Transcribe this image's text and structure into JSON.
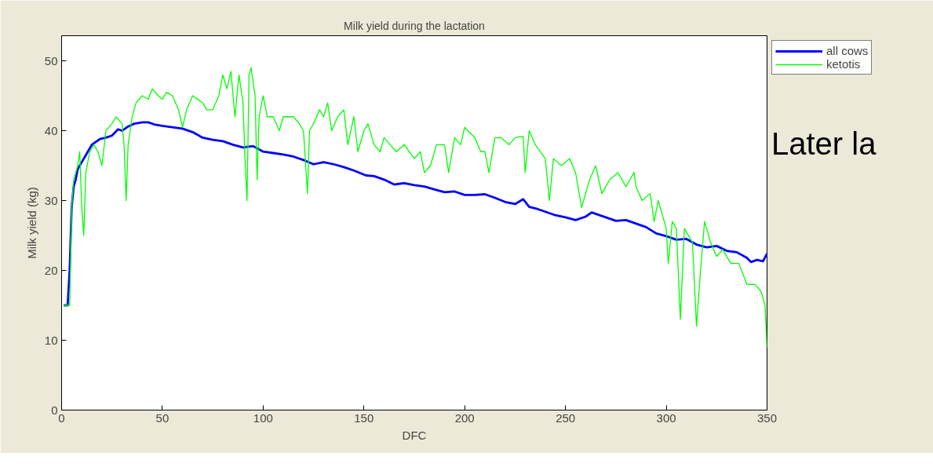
{
  "chart_data": {
    "type": "line",
    "title": "Milk yield during the lactation",
    "xlabel": "DFC",
    "ylabel": "Milk yield (kg)",
    "xlim": [
      0,
      350
    ],
    "ylim": [
      0,
      53.6
    ],
    "xticks": [
      0,
      50,
      100,
      150,
      200,
      250,
      300,
      350
    ],
    "yticks": [
      0,
      10,
      20,
      30,
      40,
      50
    ],
    "grid": false,
    "legend": "top right",
    "line_style": "solid",
    "marker": "none",
    "annotations": [
      "Later la"
    ],
    "series": [
      {
        "name": "all cows",
        "color": "#0000ff",
        "x": [
          1,
          3,
          4,
          5,
          6,
          7,
          8,
          10,
          12,
          15,
          19,
          22,
          25,
          28,
          30,
          33,
          36,
          40,
          43,
          46,
          50,
          55,
          60,
          65,
          70,
          75,
          80,
          85,
          90,
          95,
          100,
          105,
          110,
          115,
          120,
          125,
          130,
          135,
          140,
          145,
          151,
          155,
          160,
          165,
          170,
          175,
          180,
          185,
          190,
          195,
          200,
          205,
          210,
          215,
          220,
          225,
          229,
          232,
          236,
          240,
          245,
          250,
          255,
          260,
          263,
          266,
          270,
          275,
          280,
          285,
          290,
          295,
          300,
          305,
          310,
          315,
          320,
          325,
          330,
          335,
          340,
          342,
          345,
          348,
          350
        ],
        "values": [
          15,
          15,
          20,
          29,
          32,
          33,
          34.5,
          35.5,
          36.5,
          38,
          38.8,
          39,
          39.3,
          40.2,
          40,
          40.6,
          41,
          41.2,
          41.2,
          40.9,
          40.7,
          40.5,
          40.3,
          39.8,
          39,
          38.7,
          38.5,
          38,
          37.6,
          37.8,
          37,
          36.8,
          36.6,
          36.3,
          35.8,
          35.2,
          35.5,
          35.2,
          34.8,
          34.3,
          33.6,
          33.5,
          33,
          32.3,
          32.5,
          32.2,
          32,
          31.6,
          31.2,
          31.3,
          30.8,
          30.8,
          30.9,
          30.4,
          29.8,
          29.5,
          30.2,
          29.1,
          28.8,
          28.4,
          27.9,
          27.6,
          27.2,
          27.7,
          28.3,
          28,
          27.6,
          27.1,
          27.2,
          26.7,
          26.2,
          25.3,
          24.9,
          24.4,
          24.5,
          23.7,
          23.3,
          23.5,
          22.8,
          22.6,
          21.8,
          21.2,
          21.5,
          21.3,
          22.4
        ]
      },
      {
        "name": "ketotis",
        "color": "#00ff00",
        "x": [
          1,
          3,
          4,
          5,
          6,
          8,
          9,
          10,
          11,
          12,
          14,
          16,
          18,
          20,
          22,
          25,
          27,
          30,
          31,
          32,
          33,
          35,
          37,
          40,
          43,
          45,
          48,
          50,
          52,
          55,
          58,
          60,
          62,
          65,
          70,
          72,
          75,
          78,
          80,
          82,
          84,
          86,
          88,
          90,
          91,
          92,
          93,
          94,
          96,
          97,
          98,
          100,
          102,
          105,
          108,
          110,
          115,
          118,
          120,
          122,
          123,
          125,
          128,
          130,
          132,
          134,
          137,
          140,
          142,
          145,
          147,
          150,
          152,
          155,
          158,
          160,
          163,
          166,
          170,
          175,
          178,
          180,
          183,
          186,
          190,
          192,
          195,
          198,
          200,
          205,
          208,
          210,
          212,
          215,
          218,
          222,
          225,
          229,
          230,
          232,
          235,
          240,
          242,
          244,
          248,
          252,
          255,
          258,
          262,
          265,
          268,
          272,
          276,
          280,
          284,
          285,
          288,
          292,
          294,
          296,
          298,
          300,
          301,
          303,
          305,
          307,
          309,
          311,
          313,
          315,
          317,
          319,
          322,
          325,
          328,
          332,
          336,
          340,
          344,
          347,
          349,
          350
        ],
        "values": [
          15,
          15,
          15,
          29,
          33,
          35,
          37,
          29,
          25,
          34,
          37,
          38,
          37,
          35,
          40,
          41,
          42,
          41,
          38,
          30,
          38,
          42,
          44,
          45,
          44.5,
          46,
          45,
          44.5,
          45.5,
          45,
          43,
          40.5,
          43,
          45,
          44,
          43,
          43,
          45,
          48,
          46,
          48.5,
          42,
          48,
          44,
          36,
          30,
          48,
          49,
          45,
          33,
          42,
          45,
          42,
          42,
          40,
          42,
          42,
          41,
          40,
          31,
          40,
          41,
          43,
          42,
          44,
          40,
          42,
          43,
          38,
          42,
          37,
          40,
          41,
          38,
          37,
          39,
          38,
          37,
          38,
          36,
          37,
          34,
          35,
          38,
          38,
          34,
          39,
          38,
          40.5,
          39,
          37,
          37,
          34,
          39,
          39,
          38,
          39,
          39.2,
          34,
          40,
          38,
          36,
          30,
          36,
          35,
          36,
          34,
          29,
          33,
          35,
          31,
          33,
          34,
          32,
          34,
          32,
          30,
          31,
          27,
          30,
          28,
          26,
          21,
          27,
          26,
          13,
          26,
          25,
          24,
          12,
          20,
          27,
          24,
          22,
          23,
          21,
          21,
          18,
          18,
          17,
          15,
          9
        ]
      }
    ]
  }
}
